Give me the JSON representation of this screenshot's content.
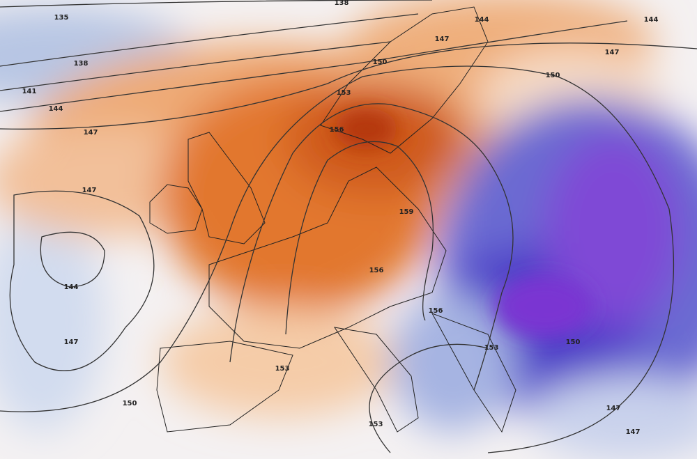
{
  "contour_labels": [
    "135",
    "138",
    "138",
    "141",
    "144",
    "147",
    "147",
    "144",
    "147",
    "150",
    "150",
    "153",
    "156",
    "159",
    "156",
    "156",
    "153",
    "153",
    "153",
    "150",
    "147",
    "144",
    "144",
    "147",
    "150",
    "147",
    "147"
  ]
}
